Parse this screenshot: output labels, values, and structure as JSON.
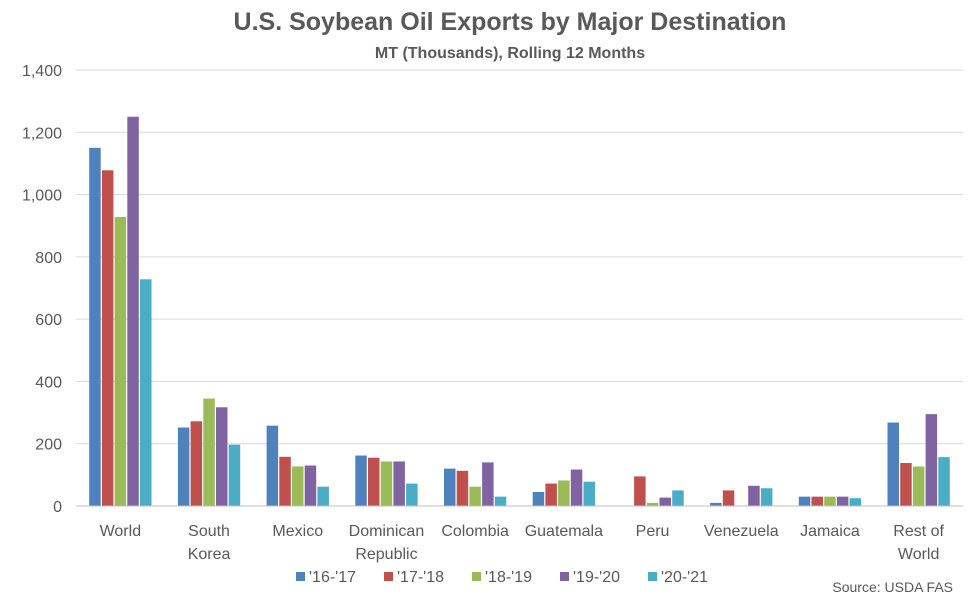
{
  "chart_data": {
    "type": "bar",
    "title": "U.S. Soybean Oil Exports by Major Destination",
    "subtitle": "MT (Thousands), Rolling 12 Months",
    "xlabel": "",
    "ylabel": "",
    "ylim": [
      0,
      1400
    ],
    "y_ticks": [
      0,
      200,
      400,
      600,
      800,
      1000,
      1200,
      1400
    ],
    "y_tick_labels": [
      "0",
      "200",
      "400",
      "600",
      "800",
      "1,000",
      "1,200",
      "1,400"
    ],
    "grid": true,
    "legend_position": "bottom",
    "categories": [
      [
        "World"
      ],
      [
        "South",
        "Korea"
      ],
      [
        "Mexico"
      ],
      [
        "Dominican",
        "Republic"
      ],
      [
        "Colombia"
      ],
      [
        "Guatemala"
      ],
      [
        "Peru"
      ],
      [
        "Venezuela"
      ],
      [
        "Jamaica"
      ],
      [
        "Rest of",
        "World"
      ]
    ],
    "series": [
      {
        "name": "'16-'17",
        "color": "#4f81bd",
        "values": [
          1150,
          252,
          258,
          162,
          120,
          45,
          0,
          10,
          30,
          268
        ]
      },
      {
        "name": "'17-'18",
        "color": "#c0504d",
        "values": [
          1078,
          272,
          158,
          155,
          113,
          72,
          95,
          50,
          30,
          138
        ]
      },
      {
        "name": "'18-'19",
        "color": "#9bbb59",
        "values": [
          928,
          345,
          127,
          143,
          62,
          82,
          10,
          0,
          30,
          127
        ]
      },
      {
        "name": "'19-'20",
        "color": "#8064a2",
        "values": [
          1250,
          317,
          130,
          143,
          140,
          117,
          27,
          65,
          30,
          295
        ]
      },
      {
        "name": "'20-'21",
        "color": "#4bacc6",
        "values": [
          728,
          197,
          62,
          72,
          30,
          78,
          50,
          57,
          25,
          157
        ]
      }
    ],
    "source": "Source: USDA FAS"
  }
}
